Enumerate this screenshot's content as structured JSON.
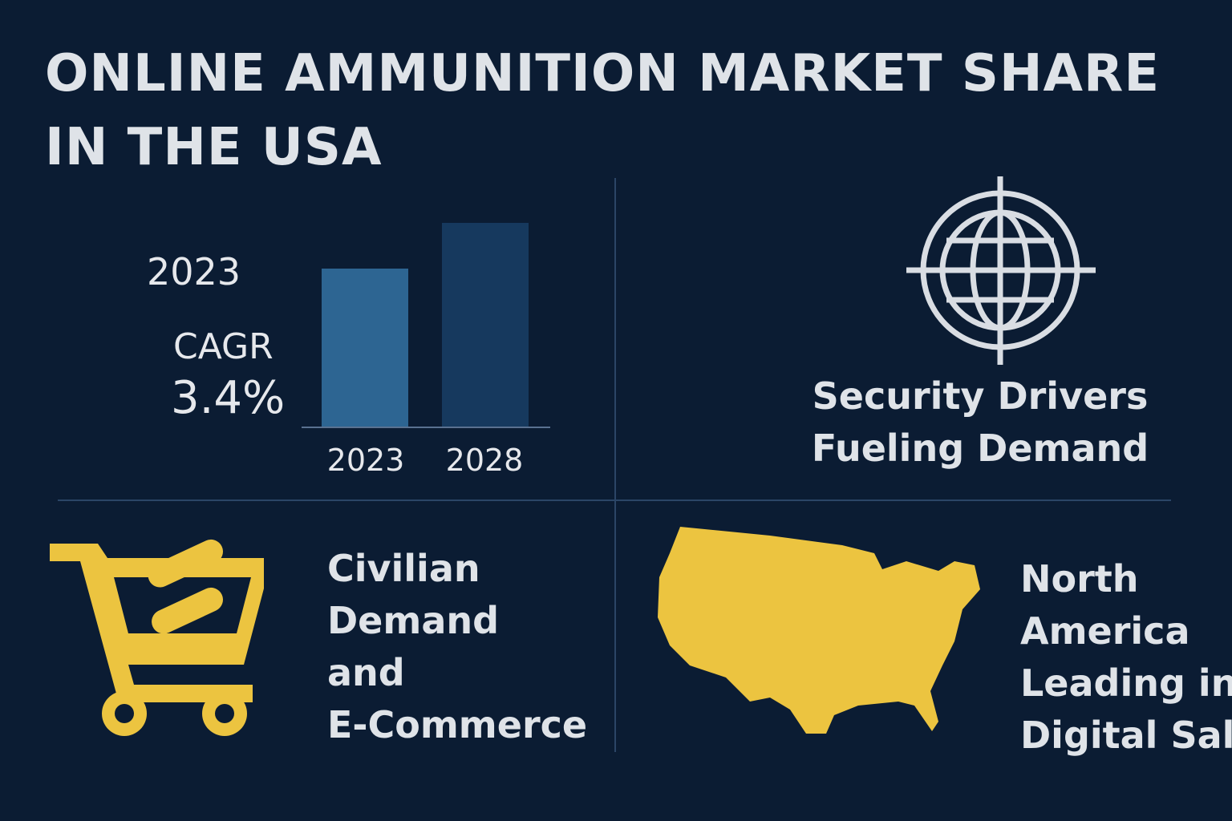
{
  "header": {
    "title_lines": [
      "ONLINE AMMUNITION MARKET SHARE",
      "IN THE USA"
    ]
  },
  "growth_panel": {
    "year": "2023",
    "cagr_label": "CAGR",
    "cagr_value": "3.4%",
    "bar_labels": [
      "2023",
      "2028"
    ]
  },
  "security_panel": {
    "lines": [
      "Security Drivers",
      "Fueling Demand"
    ]
  },
  "civilian_panel": {
    "lines": [
      "Civilian",
      "Demand",
      "and",
      "E-Commerce"
    ]
  },
  "region_panel": {
    "lines": [
      "North",
      "America",
      "Leading in",
      "Digital Sales"
    ]
  }
}
